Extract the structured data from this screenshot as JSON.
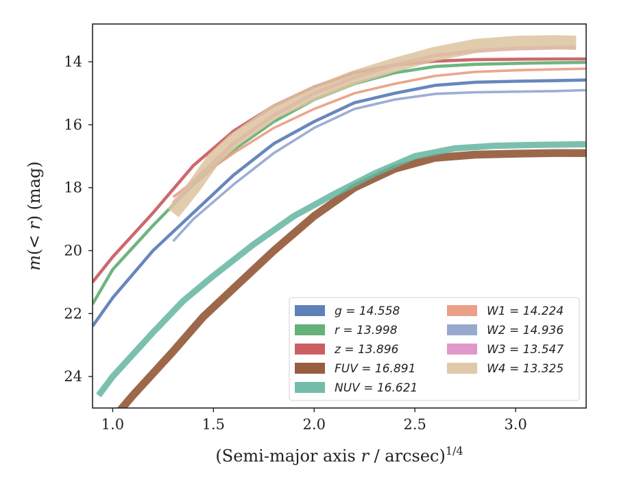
{
  "chart_data": {
    "type": "line",
    "xlabel": "(Semi-major axis r / arcsec)^1/4",
    "ylabel": "m(< r) (mag)",
    "xlim": [
      0.9,
      3.35
    ],
    "ylim": [
      25,
      12.8
    ],
    "y_inverted": true,
    "x_ticks": [
      1.0,
      1.5,
      2.0,
      2.5,
      3.0
    ],
    "x_tick_labels": [
      "1.0",
      "1.5",
      "2.0",
      "2.5",
      "3.0"
    ],
    "y_ticks": [
      14,
      16,
      18,
      20,
      22,
      24
    ],
    "y_tick_labels": [
      "14",
      "16",
      "18",
      "20",
      "22",
      "24"
    ],
    "grid": false,
    "legend_position": "lower-right",
    "series": [
      {
        "name": "g = 14.558",
        "legend_label": "g = 14.558",
        "color": "#4c72b0",
        "width_mag": 0.1,
        "x": [
          0.9,
          1.0,
          1.2,
          1.4,
          1.6,
          1.8,
          2.0,
          2.2,
          2.4,
          2.6,
          2.8,
          3.0,
          3.2,
          3.35
        ],
        "y": [
          22.4,
          21.5,
          20.0,
          18.8,
          17.6,
          16.6,
          15.9,
          15.3,
          15.0,
          14.75,
          14.65,
          14.62,
          14.6,
          14.58
        ]
      },
      {
        "name": "r = 13.998",
        "legend_label": "r = 13.998",
        "color": "#55a868",
        "width_mag": 0.1,
        "x": [
          0.9,
          1.0,
          1.2,
          1.4,
          1.6,
          1.8,
          2.0,
          2.2,
          2.4,
          2.6,
          2.8,
          3.0,
          3.2,
          3.35
        ],
        "y": [
          21.7,
          20.6,
          19.2,
          17.9,
          16.8,
          15.9,
          15.2,
          14.7,
          14.35,
          14.15,
          14.08,
          14.05,
          14.03,
          14.02
        ]
      },
      {
        "name": "z = 13.896",
        "legend_label": "z = 13.896",
        "color": "#c44e52",
        "width_mag": 0.1,
        "x": [
          0.9,
          1.0,
          1.2,
          1.4,
          1.6,
          1.8,
          2.0,
          2.2,
          2.4,
          2.6,
          2.8,
          3.0,
          3.2,
          3.35
        ],
        "y": [
          21.0,
          20.2,
          18.8,
          17.3,
          16.2,
          15.4,
          14.8,
          14.35,
          14.1,
          13.98,
          13.93,
          13.92,
          13.91,
          13.91
        ]
      },
      {
        "name": "FUV = 16.891",
        "legend_label": "FUV = 16.891",
        "color": "#8c4d2a",
        "width_mag": 0.25,
        "x": [
          1.02,
          1.1,
          1.2,
          1.3,
          1.45,
          1.6,
          1.8,
          2.0,
          2.2,
          2.4,
          2.6,
          2.8,
          3.0,
          3.2,
          3.35
        ],
        "y": [
          25.2,
          24.6,
          23.9,
          23.2,
          22.1,
          21.2,
          20.0,
          18.9,
          18.0,
          17.4,
          17.05,
          16.95,
          16.92,
          16.9,
          16.9
        ]
      },
      {
        "name": "NUV = 16.621",
        "legend_label": "NUV = 16.621",
        "color": "#64b5a0",
        "width_mag": 0.2,
        "x": [
          0.93,
          1.0,
          1.1,
          1.2,
          1.35,
          1.5,
          1.7,
          1.9,
          2.1,
          2.3,
          2.5,
          2.7,
          2.9,
          3.1,
          3.35
        ],
        "y": [
          24.6,
          24.0,
          23.3,
          22.6,
          21.6,
          20.8,
          19.8,
          18.9,
          18.2,
          17.55,
          17.0,
          16.75,
          16.67,
          16.64,
          16.62
        ]
      },
      {
        "name": "W1 = 14.224",
        "legend_label": "W1 = 14.224",
        "color": "#e8967a",
        "width_mag": 0.08,
        "x": [
          1.3,
          1.4,
          1.6,
          1.8,
          2.0,
          2.2,
          2.4,
          2.6,
          2.8,
          3.0,
          3.2,
          3.35
        ],
        "y": [
          18.3,
          17.8,
          16.9,
          16.1,
          15.5,
          15.0,
          14.7,
          14.45,
          14.32,
          14.27,
          14.24,
          14.22
        ]
      },
      {
        "name": "W2 = 14.936",
        "legend_label": "W2 = 14.936",
        "color": "#8da0cb",
        "width_mag": 0.08,
        "x": [
          1.3,
          1.4,
          1.6,
          1.8,
          2.0,
          2.2,
          2.4,
          2.6,
          2.8,
          3.0,
          3.2,
          3.35
        ],
        "y": [
          19.7,
          19.0,
          17.9,
          16.9,
          16.1,
          15.5,
          15.2,
          15.02,
          14.97,
          14.95,
          14.93,
          14.9
        ]
      },
      {
        "name": "W3 = 13.547",
        "legend_label": "W3 = 13.547",
        "color": "#dd8cc4",
        "width_mag": 0.12,
        "x": [
          1.3,
          1.4,
          1.6,
          1.8,
          2.0,
          2.2,
          2.4,
          2.6,
          2.8,
          3.0,
          3.2,
          3.3
        ],
        "y": [
          18.5,
          17.8,
          16.6,
          15.7,
          15.0,
          14.5,
          14.1,
          13.8,
          13.65,
          13.58,
          13.55,
          13.55
        ]
      },
      {
        "name": "W4 = 13.325",
        "legend_label": "W4 = 13.325",
        "color": "#dcc3a0",
        "width_mag": 0.45,
        "x": [
          1.3,
          1.4,
          1.5,
          1.6,
          1.8,
          2.0,
          2.2,
          2.4,
          2.6,
          2.8,
          3.0,
          3.2,
          3.3
        ],
        "y": [
          18.8,
          18.0,
          17.1,
          16.5,
          15.6,
          15.0,
          14.5,
          14.1,
          13.75,
          13.5,
          13.4,
          13.38,
          13.4
        ]
      }
    ]
  }
}
